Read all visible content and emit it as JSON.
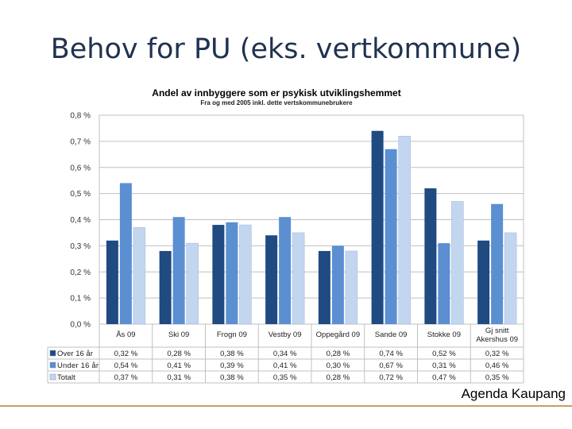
{
  "slide": {
    "title": "Behov for PU (eks. vertkommune)",
    "footer": "Agenda Kaupang"
  },
  "colors": {
    "series": [
      "#1f4a82",
      "#5b8fd2",
      "#c3d6f0"
    ],
    "grid": "#c0c0c0",
    "footer_line": "#c8a060"
  },
  "chart_data": {
    "type": "bar",
    "title": "Andel av innbyggere som er psykisk utviklingshemmet",
    "subtitle": "Fra og med 2005 inkl. dette vertskommunebrukere",
    "categories": [
      "Ås 09",
      "Ski 09",
      "Frogn 09",
      "Vestby 09",
      "Oppegård 09",
      "Sande 09",
      "Stokke 09",
      "Gj snitt Akershus 09"
    ],
    "category_lines": [
      [
        "Ås 09"
      ],
      [
        "Ski 09"
      ],
      [
        "Frogn 09"
      ],
      [
        "Vestby 09"
      ],
      [
        "Oppegård 09"
      ],
      [
        "Sande 09"
      ],
      [
        "Stokke 09"
      ],
      [
        "Gj snitt",
        "Akershus 09"
      ]
    ],
    "series": [
      {
        "name": "Over 16 år",
        "values": [
          0.32,
          0.28,
          0.38,
          0.34,
          0.28,
          0.74,
          0.52,
          0.32
        ],
        "labels": [
          "0,32 %",
          "0,28 %",
          "0,38 %",
          "0,34 %",
          "0,28 %",
          "0,74 %",
          "0,52 %",
          "0,32 %"
        ]
      },
      {
        "name": "Under 16 år",
        "values": [
          0.54,
          0.41,
          0.39,
          0.41,
          0.3,
          0.67,
          0.31,
          0.46
        ],
        "labels": [
          "0,54 %",
          "0,41 %",
          "0,39 %",
          "0,41 %",
          "0,30 %",
          "0,67 %",
          "0,31 %",
          "0,46 %"
        ]
      },
      {
        "name": "Totalt",
        "values": [
          0.37,
          0.31,
          0.38,
          0.35,
          0.28,
          0.72,
          0.47,
          0.35
        ],
        "labels": [
          "0,37 %",
          "0,31 %",
          "0,38 %",
          "0,35 %",
          "0,28 %",
          "0,72 %",
          "0,47 %",
          "0,35 %"
        ]
      }
    ],
    "ylim": [
      0,
      0.8
    ],
    "yticks": [
      0.0,
      0.1,
      0.2,
      0.3,
      0.4,
      0.5,
      0.6,
      0.7,
      0.8
    ],
    "ytick_labels": [
      "0,0 %",
      "0,1 %",
      "0,2 %",
      "0,3 %",
      "0,4 %",
      "0,5 %",
      "0,6 %",
      "0,7 %",
      "0,8 %"
    ],
    "grid": true,
    "legend": "data-table"
  }
}
